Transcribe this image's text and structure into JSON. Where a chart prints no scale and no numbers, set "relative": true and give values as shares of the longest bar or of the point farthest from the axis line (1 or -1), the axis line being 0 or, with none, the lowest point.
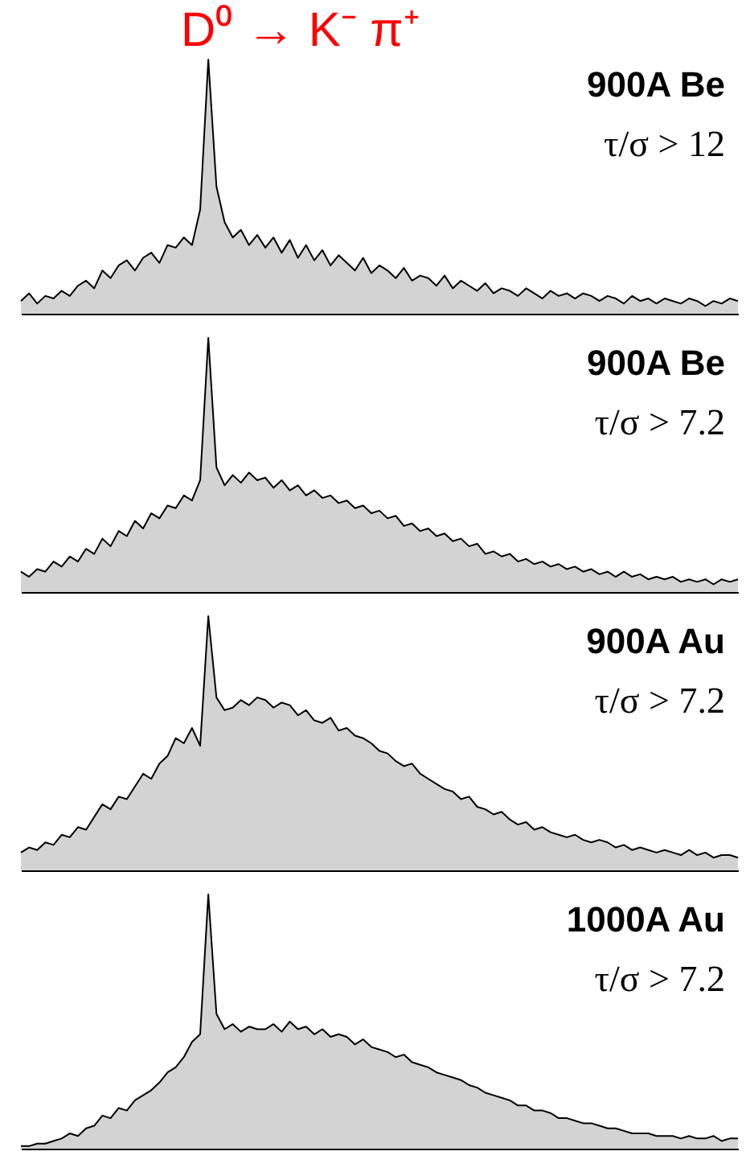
{
  "chart_data": [
    {
      "type": "area",
      "title": "D⁰ → K⁻ π⁺",
      "annotations": [
        "900A Be",
        "τ/σ > 12"
      ],
      "relative": true,
      "tick_labels": false,
      "categories": [
        null,
        null,
        null,
        null,
        null,
        null,
        null,
        null,
        null,
        null,
        null,
        null,
        null,
        null,
        null,
        null,
        null,
        null,
        null,
        null,
        null,
        null,
        null,
        null,
        null,
        null,
        null,
        null,
        null,
        null,
        null,
        null,
        null,
        null,
        null,
        null,
        null,
        null,
        null,
        null,
        null,
        null,
        null,
        null,
        null,
        null,
        null,
        null,
        null,
        null,
        null,
        null,
        null,
        null,
        null,
        null,
        null,
        null,
        null,
        null,
        null,
        null,
        null,
        null,
        null,
        null,
        null,
        null,
        null,
        null,
        null,
        null,
        null,
        null,
        null,
        null,
        null,
        null,
        null,
        null,
        null,
        null,
        null,
        null,
        null,
        null,
        null,
        null,
        null
      ],
      "series": [
        {
          "color": "#d3d3d3",
          "values": [
            0.05,
            0.08,
            0.04,
            0.07,
            0.06,
            0.09,
            0.07,
            0.11,
            0.13,
            0.1,
            0.17,
            0.14,
            0.19,
            0.21,
            0.17,
            0.22,
            0.24,
            0.2,
            0.27,
            0.26,
            0.3,
            0.27,
            0.41,
            1,
            0.5,
            0.36,
            0.3,
            0.33,
            0.27,
            0.31,
            0.26,
            0.3,
            0.24,
            0.29,
            0.22,
            0.27,
            0.21,
            0.25,
            0.19,
            0.23,
            0.2,
            0.17,
            0.22,
            0.16,
            0.19,
            0.17,
            0.14,
            0.18,
            0.13,
            0.15,
            0.14,
            0.11,
            0.15,
            0.1,
            0.13,
            0.11,
            0.09,
            0.12,
            0.08,
            0.1,
            0.09,
            0.07,
            0.1,
            0.08,
            0.06,
            0.09,
            0.07,
            0.08,
            0.06,
            0.08,
            0.07,
            0.05,
            0.07,
            0.06,
            0.04,
            0.07,
            0.05,
            0.06,
            0.04,
            0.06,
            0.05,
            0.04,
            0.06,
            0.05,
            0.03,
            0.05,
            0.04,
            0.06,
            0.05
          ]
        }
      ]
    },
    {
      "type": "area",
      "annotations": [
        "900A Be",
        "τ/σ > 7.2"
      ],
      "relative": true,
      "tick_labels": false,
      "categories": [
        null,
        null,
        null,
        null,
        null,
        null,
        null,
        null,
        null,
        null,
        null,
        null,
        null,
        null,
        null,
        null,
        null,
        null,
        null,
        null,
        null,
        null,
        null,
        null,
        null,
        null,
        null,
        null,
        null,
        null,
        null,
        null,
        null,
        null,
        null,
        null,
        null,
        null,
        null,
        null,
        null,
        null,
        null,
        null,
        null,
        null,
        null,
        null,
        null,
        null,
        null,
        null,
        null,
        null,
        null,
        null,
        null,
        null,
        null,
        null,
        null,
        null,
        null,
        null,
        null,
        null,
        null,
        null,
        null,
        null,
        null,
        null,
        null,
        null,
        null,
        null,
        null,
        null,
        null,
        null,
        null,
        null,
        null,
        null,
        null,
        null,
        null,
        null,
        null
      ],
      "series": [
        {
          "color": "#d3d3d3",
          "values": [
            0.08,
            0.06,
            0.09,
            0.08,
            0.12,
            0.1,
            0.14,
            0.12,
            0.17,
            0.15,
            0.21,
            0.18,
            0.24,
            0.22,
            0.28,
            0.25,
            0.31,
            0.29,
            0.34,
            0.33,
            0.38,
            0.36,
            0.44,
            1,
            0.49,
            0.42,
            0.46,
            0.43,
            0.47,
            0.44,
            0.45,
            0.41,
            0.44,
            0.4,
            0.42,
            0.38,
            0.4,
            0.37,
            0.38,
            0.35,
            0.36,
            0.33,
            0.34,
            0.31,
            0.32,
            0.29,
            0.3,
            0.26,
            0.27,
            0.24,
            0.25,
            0.22,
            0.23,
            0.2,
            0.21,
            0.18,
            0.19,
            0.15,
            0.16,
            0.14,
            0.15,
            0.12,
            0.13,
            0.11,
            0.12,
            0.1,
            0.11,
            0.09,
            0.1,
            0.08,
            0.09,
            0.07,
            0.08,
            0.06,
            0.08,
            0.06,
            0.07,
            0.05,
            0.06,
            0.05,
            0.06,
            0.04,
            0.05,
            0.04,
            0.05,
            0.03,
            0.05,
            0.04,
            0.05
          ]
        }
      ]
    },
    {
      "type": "area",
      "annotations": [
        "900A Au",
        "τ/σ > 7.2"
      ],
      "relative": true,
      "tick_labels": false,
      "categories": [
        null,
        null,
        null,
        null,
        null,
        null,
        null,
        null,
        null,
        null,
        null,
        null,
        null,
        null,
        null,
        null,
        null,
        null,
        null,
        null,
        null,
        null,
        null,
        null,
        null,
        null,
        null,
        null,
        null,
        null,
        null,
        null,
        null,
        null,
        null,
        null,
        null,
        null,
        null,
        null,
        null,
        null,
        null,
        null,
        null,
        null,
        null,
        null,
        null,
        null,
        null,
        null,
        null,
        null,
        null,
        null,
        null,
        null,
        null,
        null,
        null,
        null,
        null,
        null,
        null,
        null,
        null,
        null,
        null,
        null,
        null,
        null,
        null,
        null,
        null,
        null,
        null,
        null,
        null,
        null,
        null,
        null,
        null,
        null,
        null,
        null,
        null,
        null,
        null
      ],
      "series": [
        {
          "color": "#d3d3d3",
          "values": [
            0.07,
            0.09,
            0.08,
            0.11,
            0.1,
            0.14,
            0.13,
            0.17,
            0.16,
            0.21,
            0.26,
            0.24,
            0.29,
            0.28,
            0.33,
            0.38,
            0.36,
            0.42,
            0.45,
            0.52,
            0.5,
            0.56,
            0.49,
            1,
            0.68,
            0.63,
            0.64,
            0.67,
            0.65,
            0.68,
            0.67,
            0.64,
            0.66,
            0.65,
            0.61,
            0.63,
            0.59,
            0.58,
            0.6,
            0.55,
            0.56,
            0.53,
            0.52,
            0.5,
            0.47,
            0.46,
            0.43,
            0.41,
            0.42,
            0.38,
            0.36,
            0.34,
            0.32,
            0.31,
            0.28,
            0.29,
            0.25,
            0.24,
            0.22,
            0.23,
            0.2,
            0.18,
            0.19,
            0.16,
            0.17,
            0.15,
            0.14,
            0.13,
            0.14,
            0.12,
            0.11,
            0.12,
            0.11,
            0.09,
            0.1,
            0.08,
            0.09,
            0.08,
            0.07,
            0.08,
            0.07,
            0.06,
            0.08,
            0.06,
            0.07,
            0.05,
            0.06,
            0.06,
            0.05
          ]
        }
      ]
    },
    {
      "type": "area",
      "annotations": [
        "1000A Au",
        "τ/σ > 7.2"
      ],
      "relative": true,
      "tick_labels": false,
      "categories": [
        null,
        null,
        null,
        null,
        null,
        null,
        null,
        null,
        null,
        null,
        null,
        null,
        null,
        null,
        null,
        null,
        null,
        null,
        null,
        null,
        null,
        null,
        null,
        null,
        null,
        null,
        null,
        null,
        null,
        null,
        null,
        null,
        null,
        null,
        null,
        null,
        null,
        null,
        null,
        null,
        null,
        null,
        null,
        null,
        null,
        null,
        null,
        null,
        null,
        null,
        null,
        null,
        null,
        null,
        null,
        null,
        null,
        null,
        null,
        null,
        null,
        null,
        null,
        null,
        null,
        null,
        null,
        null,
        null,
        null,
        null,
        null,
        null,
        null,
        null,
        null,
        null,
        null,
        null,
        null,
        null,
        null,
        null,
        null,
        null,
        null,
        null,
        null,
        null
      ],
      "series": [
        {
          "color": "#d3d3d3",
          "values": [
            0.01,
            0.01,
            0.02,
            0.02,
            0.03,
            0.04,
            0.06,
            0.05,
            0.08,
            0.09,
            0.13,
            0.12,
            0.16,
            0.15,
            0.19,
            0.21,
            0.23,
            0.26,
            0.3,
            0.32,
            0.36,
            0.42,
            0.45,
            1,
            0.53,
            0.47,
            0.49,
            0.46,
            0.48,
            0.47,
            0.47,
            0.49,
            0.46,
            0.5,
            0.47,
            0.48,
            0.45,
            0.47,
            0.44,
            0.45,
            0.44,
            0.41,
            0.43,
            0.4,
            0.39,
            0.38,
            0.36,
            0.37,
            0.34,
            0.33,
            0.32,
            0.3,
            0.29,
            0.28,
            0.27,
            0.25,
            0.24,
            0.22,
            0.21,
            0.2,
            0.19,
            0.17,
            0.17,
            0.15,
            0.15,
            0.14,
            0.12,
            0.12,
            0.11,
            0.1,
            0.1,
            0.09,
            0.08,
            0.08,
            0.07,
            0.06,
            0.06,
            0.06,
            0.05,
            0.05,
            0.05,
            0.04,
            0.05,
            0.04,
            0.04,
            0.05,
            0.03,
            0.04,
            0.04
          ]
        }
      ]
    }
  ]
}
